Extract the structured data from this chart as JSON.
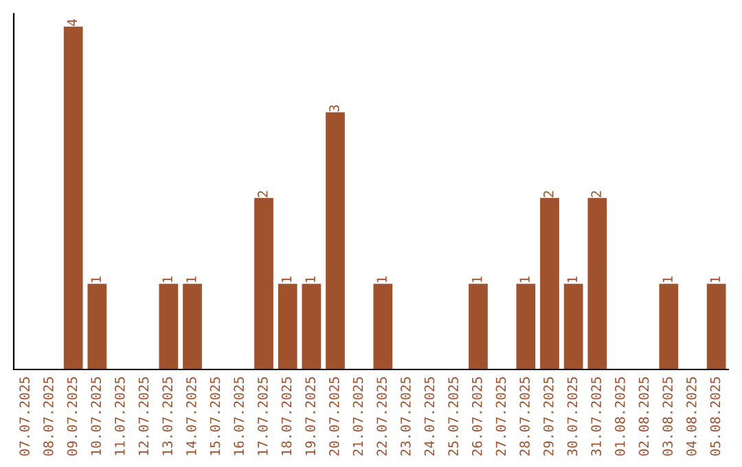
{
  "chart_data": {
    "type": "bar",
    "categories": [
      "07.07.2025",
      "08.07.2025",
      "09.07.2025",
      "10.07.2025",
      "11.07.2025",
      "12.07.2025",
      "13.07.2025",
      "14.07.2025",
      "15.07.2025",
      "16.07.2025",
      "17.07.2025",
      "18.07.2025",
      "19.07.2025",
      "20.07.2025",
      "21.07.2025",
      "22.07.2025",
      "23.07.2025",
      "24.07.2025",
      "25.07.2025",
      "26.07.2025",
      "27.07.2025",
      "28.07.2025",
      "29.07.2025",
      "30.07.2025",
      "31.07.2025",
      "01.08.2025",
      "02.08.2025",
      "03.08.2025",
      "04.08.2025",
      "05.08.2025"
    ],
    "values": [
      0,
      0,
      4,
      1,
      0,
      0,
      1,
      1,
      0,
      0,
      2,
      1,
      1,
      3,
      0,
      1,
      0,
      0,
      0,
      1,
      0,
      1,
      2,
      1,
      2,
      0,
      0,
      1,
      0,
      1
    ],
    "value_labels": [
      null,
      null,
      "4",
      "1",
      null,
      null,
      "1",
      "1",
      null,
      null,
      "2",
      "1",
      "1",
      "3",
      null,
      "1",
      null,
      null,
      null,
      "1",
      null,
      "1",
      "2",
      "1",
      "2",
      null,
      null,
      "1",
      null,
      "1"
    ],
    "color": "#a0522d",
    "ylim": [
      0,
      4.15
    ],
    "tick_labels": "x",
    "grid": false
  }
}
